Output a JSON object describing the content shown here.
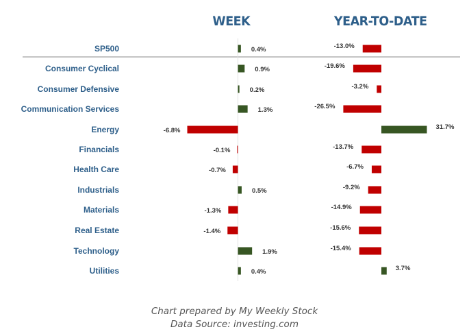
{
  "headers": {
    "week": "WEEK",
    "ytd": "YEAR-TO-DATE"
  },
  "footer": {
    "line1": "Chart prepared by My Weekly Stock",
    "line2": "Data Source: investing.com"
  },
  "colors": {
    "positive": "#375623",
    "negative": "#c00000",
    "label": "#2e5f8a",
    "separator": "#b0b0b0"
  },
  "chart_data": [
    {
      "type": "bar",
      "orientation": "horizontal",
      "title": "WEEK",
      "categories": [
        "SP500",
        "Consumer Cyclical",
        "Consumer Defensive",
        "Communication Services",
        "Energy",
        "Financials",
        "Health Care",
        "Industrials",
        "Materials",
        "Real Estate",
        "Technology",
        "Utilities"
      ],
      "values": [
        0.4,
        0.9,
        0.2,
        1.3,
        -6.8,
        -0.1,
        -0.7,
        0.5,
        -1.3,
        -1.4,
        1.9,
        0.4
      ],
      "labels": [
        "0.4%",
        "0.9%",
        "0.2%",
        "1.3%",
        "-6.8%",
        "-0.1%",
        "-0.7%",
        "0.5%",
        "-1.3%",
        "-1.4%",
        "1.9%",
        "0.4%"
      ]
    },
    {
      "type": "bar",
      "orientation": "horizontal",
      "title": "YEAR-TO-DATE",
      "categories": [
        "SP500",
        "Consumer Cyclical",
        "Consumer Defensive",
        "Communication Services",
        "Energy",
        "Financials",
        "Health Care",
        "Industrials",
        "Materials",
        "Real Estate",
        "Technology",
        "Utilities"
      ],
      "values": [
        -13.0,
        -19.6,
        -3.2,
        -26.5,
        31.7,
        -13.7,
        -6.7,
        -9.2,
        -14.9,
        -15.6,
        -15.4,
        3.7
      ],
      "labels": [
        "-13.0%",
        "-19.6%",
        "-3.2%",
        "-26.5%",
        "31.7%",
        "-13.7%",
        "-6.7%",
        "-9.2%",
        "-14.9%",
        "-15.6%",
        "-15.4%",
        "3.7%"
      ]
    }
  ]
}
